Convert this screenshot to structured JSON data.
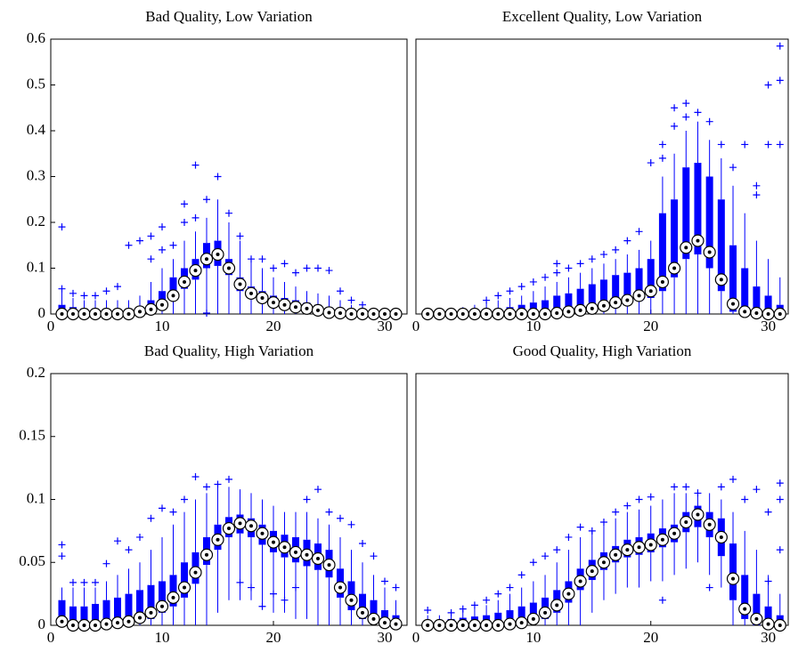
{
  "chart_data": [
    {
      "type": "box",
      "title": "Bad Quality, Low Variation",
      "color": "#0000ff",
      "x": [
        1,
        2,
        3,
        4,
        5,
        6,
        7,
        8,
        9,
        10,
        11,
        12,
        13,
        14,
        15,
        16,
        17,
        18,
        19,
        20,
        21,
        22,
        23,
        24,
        25,
        26,
        27,
        28,
        29,
        30,
        31
      ],
      "median": [
        0,
        0,
        0,
        0,
        0,
        0,
        0,
        0.005,
        0.01,
        0.02,
        0.04,
        0.07,
        0.095,
        0.12,
        0.13,
        0.1,
        0.065,
        0.045,
        0.035,
        0.025,
        0.02,
        0.015,
        0.012,
        0.008,
        0.003,
        0.002,
        0,
        0,
        0,
        0,
        0
      ],
      "q1": [
        0,
        0,
        0,
        0,
        0,
        0,
        0,
        0,
        0.005,
        0.012,
        0.03,
        0.055,
        0.075,
        0.1,
        0.105,
        0.085,
        0.05,
        0.035,
        0.025,
        0.018,
        0.012,
        0.01,
        0.007,
        0.004,
        0.001,
        0,
        0,
        0,
        0,
        0,
        0
      ],
      "q3": [
        0.02,
        0.015,
        0.012,
        0.012,
        0.01,
        0.01,
        0.012,
        0.015,
        0.03,
        0.05,
        0.08,
        0.1,
        0.12,
        0.155,
        0.16,
        0.12,
        0.08,
        0.06,
        0.05,
        0.04,
        0.035,
        0.03,
        0.025,
        0.02,
        0.015,
        0.012,
        0.01,
        0.008,
        0.005,
        0.004,
        0.003
      ],
      "whislo": [
        0,
        0,
        0,
        0,
        0,
        0,
        0,
        0,
        0,
        0,
        0,
        0,
        0,
        0,
        0,
        0,
        0,
        0,
        0,
        0,
        0,
        0,
        0,
        0,
        0,
        0,
        0,
        0,
        0,
        0,
        0
      ],
      "whishi": [
        0.05,
        0.035,
        0.03,
        0.03,
        0.03,
        0.03,
        0.03,
        0.04,
        0.07,
        0.1,
        0.12,
        0.16,
        0.18,
        0.21,
        0.25,
        0.2,
        0.16,
        0.12,
        0.1,
        0.08,
        0.07,
        0.06,
        0.05,
        0.045,
        0.04,
        0.03,
        0.02,
        0.015,
        0.01,
        0.008,
        0.006
      ],
      "outliers": [
        [
          0.19,
          0.055
        ],
        [
          0.045
        ],
        [
          0.04
        ],
        [
          0.04
        ],
        [
          0.05
        ],
        [
          0.06
        ],
        [
          0.15
        ],
        [
          0.16
        ],
        [
          0.17,
          0.12
        ],
        [
          0.19,
          0.14
        ],
        [
          0.15
        ],
        [
          0.24,
          0.2
        ],
        [
          0.325,
          0.21
        ],
        [
          0.25,
          0.002
        ],
        [
          0.3
        ],
        [
          0.22
        ],
        [
          0.17
        ],
        [
          0.12
        ],
        [
          0.12
        ],
        [
          0.1
        ],
        [
          0.11
        ],
        [
          0.09
        ],
        [
          0.1
        ],
        [
          0.1
        ],
        [
          0.095
        ],
        [
          0.05
        ],
        [
          0.03
        ],
        [
          0.02
        ],
        [],
        [],
        []
      ],
      "xlim": [
        0,
        32
      ],
      "ylim": [
        0,
        0.6
      ],
      "xticks": [
        0,
        10,
        20,
        30
      ],
      "yticks": [
        0,
        0.1,
        0.2,
        0.3,
        0.4,
        0.5,
        0.6
      ]
    },
    {
      "type": "box",
      "title": "Excellent Quality, Low Variation",
      "color": "#0000ff",
      "x": [
        1,
        2,
        3,
        4,
        5,
        6,
        7,
        8,
        9,
        10,
        11,
        12,
        13,
        14,
        15,
        16,
        17,
        18,
        19,
        20,
        21,
        22,
        23,
        24,
        25,
        26,
        27,
        28,
        29,
        30,
        31
      ],
      "median": [
        0,
        0,
        0,
        0,
        0,
        0,
        0,
        0,
        0,
        0,
        0,
        0.002,
        0.005,
        0.008,
        0.012,
        0.018,
        0.025,
        0.03,
        0.04,
        0.05,
        0.07,
        0.1,
        0.145,
        0.16,
        0.135,
        0.075,
        0.022,
        0.005,
        0.002,
        0,
        0
      ],
      "q1": [
        0,
        0,
        0,
        0,
        0,
        0,
        0,
        0,
        0,
        0,
        0,
        0,
        0.002,
        0.004,
        0.006,
        0.01,
        0.015,
        0.02,
        0.028,
        0.035,
        0.05,
        0.08,
        0.12,
        0.13,
        0.1,
        0.05,
        0.005,
        0,
        0,
        0,
        0
      ],
      "q3": [
        0.005,
        0.005,
        0.005,
        0.006,
        0.008,
        0.01,
        0.012,
        0.015,
        0.02,
        0.025,
        0.03,
        0.04,
        0.045,
        0.055,
        0.065,
        0.075,
        0.085,
        0.09,
        0.1,
        0.12,
        0.22,
        0.25,
        0.32,
        0.33,
        0.3,
        0.25,
        0.15,
        0.1,
        0.06,
        0.04,
        0.02
      ],
      "whislo": [
        0,
        0,
        0,
        0,
        0,
        0,
        0,
        0,
        0,
        0,
        0,
        0,
        0,
        0,
        0,
        0,
        0,
        0,
        0,
        0,
        0,
        0,
        0,
        0,
        0,
        0,
        0,
        0,
        0,
        0,
        0
      ],
      "whishi": [
        0.01,
        0.01,
        0.012,
        0.015,
        0.02,
        0.025,
        0.03,
        0.035,
        0.04,
        0.05,
        0.06,
        0.07,
        0.08,
        0.09,
        0.1,
        0.11,
        0.12,
        0.13,
        0.14,
        0.16,
        0.3,
        0.35,
        0.4,
        0.42,
        0.38,
        0.34,
        0.28,
        0.22,
        0.16,
        0.12,
        0.08
      ],
      "outliers": [
        [],
        [],
        [],
        [],
        [],
        [
          0.03
        ],
        [
          0.04
        ],
        [
          0.05
        ],
        [
          0.06
        ],
        [
          0.07
        ],
        [
          0.08
        ],
        [
          0.09,
          0.11
        ],
        [
          0.1
        ],
        [
          0.11
        ],
        [
          0.12
        ],
        [
          0.13
        ],
        [
          0.14
        ],
        [
          0.16
        ],
        [
          0.18
        ],
        [
          0.33
        ],
        [
          0.34,
          0.37
        ],
        [
          0.41,
          0.45
        ],
        [
          0.46,
          0.43
        ],
        [
          0.44
        ],
        [
          0.42
        ],
        [
          0.37
        ],
        [
          0.32
        ],
        [
          0.37
        ],
        [
          0.26,
          0.28
        ],
        [
          0.37,
          0.5
        ],
        [
          0.585,
          0.51,
          0.37
        ]
      ],
      "xlim": [
        0,
        31.7
      ],
      "ylim": [
        0,
        0.6
      ],
      "xticks": [
        0,
        10,
        20,
        30
      ]
    },
    {
      "type": "box",
      "title": "Bad Quality, High Variation",
      "color": "#0000ff",
      "x": [
        1,
        2,
        3,
        4,
        5,
        6,
        7,
        8,
        9,
        10,
        11,
        12,
        13,
        14,
        15,
        16,
        17,
        18,
        19,
        20,
        21,
        22,
        23,
        24,
        25,
        26,
        27,
        28,
        29,
        30,
        31
      ],
      "median": [
        0.003,
        0,
        0,
        0,
        0.001,
        0.002,
        0.003,
        0.006,
        0.01,
        0.015,
        0.022,
        0.03,
        0.042,
        0.056,
        0.068,
        0.077,
        0.081,
        0.079,
        0.073,
        0.066,
        0.062,
        0.058,
        0.056,
        0.053,
        0.048,
        0.03,
        0.02,
        0.01,
        0.005,
        0.002,
        0.001
      ],
      "q1": [
        0,
        0,
        0,
        0,
        0,
        0,
        0,
        0.002,
        0.005,
        0.01,
        0.015,
        0.022,
        0.033,
        0.048,
        0.06,
        0.07,
        0.073,
        0.07,
        0.064,
        0.058,
        0.054,
        0.05,
        0.047,
        0.044,
        0.038,
        0.022,
        0.012,
        0.005,
        0.001,
        0,
        0
      ],
      "q3": [
        0.02,
        0.015,
        0.015,
        0.017,
        0.02,
        0.022,
        0.025,
        0.028,
        0.032,
        0.035,
        0.04,
        0.05,
        0.058,
        0.07,
        0.08,
        0.086,
        0.088,
        0.085,
        0.08,
        0.075,
        0.072,
        0.07,
        0.068,
        0.065,
        0.06,
        0.045,
        0.035,
        0.025,
        0.02,
        0.012,
        0.008
      ],
      "whislo": [
        0,
        0,
        0,
        0,
        0,
        0,
        0,
        0,
        0,
        0,
        0,
        0,
        0,
        0,
        0.01,
        0.02,
        0.02,
        0.02,
        0.015,
        0.01,
        0.01,
        0.005,
        0.005,
        0,
        0,
        0,
        0,
        0,
        0,
        0,
        0
      ],
      "whishi": [
        0.03,
        0.03,
        0.03,
        0.03,
        0.035,
        0.04,
        0.045,
        0.05,
        0.06,
        0.07,
        0.08,
        0.09,
        0.1,
        0.105,
        0.11,
        0.11,
        0.108,
        0.105,
        0.1,
        0.095,
        0.09,
        0.09,
        0.09,
        0.085,
        0.08,
        0.07,
        0.06,
        0.05,
        0.04,
        0.03,
        0.02
      ],
      "outliers": [
        [
          0.064,
          0.055
        ],
        [
          0.034
        ],
        [
          0.034
        ],
        [
          0.034
        ],
        [
          0.049
        ],
        [
          0.067
        ],
        [
          0.06
        ],
        [
          0.07
        ],
        [
          0.085
        ],
        [
          0.093
        ],
        [
          0.09
        ],
        [
          0.1
        ],
        [
          0.118
        ],
        [
          0.11
        ],
        [
          0.112
        ],
        [
          0.116
        ],
        [
          0.034
        ],
        [
          0.03
        ],
        [
          0.015
        ],
        [
          0.025
        ],
        [
          0.02
        ],
        [
          0.03
        ],
        [
          0.1
        ],
        [
          0.108
        ],
        [
          0.09
        ],
        [
          0.085
        ],
        [
          0.08
        ],
        [
          0.065
        ],
        [
          0.055
        ],
        [
          0.035
        ],
        [
          0.03
        ]
      ],
      "xlim": [
        0,
        32
      ],
      "ylim": [
        0,
        0.2
      ],
      "xticks": [
        0,
        10,
        20,
        30
      ],
      "yticks": [
        0,
        0.05,
        0.1,
        0.15,
        0.2
      ]
    },
    {
      "type": "box",
      "title": "Good Quality, High Variation",
      "color": "#0000ff",
      "x": [
        1,
        2,
        3,
        4,
        5,
        6,
        7,
        8,
        9,
        10,
        11,
        12,
        13,
        14,
        15,
        16,
        17,
        18,
        19,
        20,
        21,
        22,
        23,
        24,
        25,
        26,
        27,
        28,
        29,
        30,
        31
      ],
      "median": [
        0,
        0,
        0,
        0,
        0,
        0,
        0,
        0.001,
        0.002,
        0.005,
        0.01,
        0.016,
        0.025,
        0.035,
        0.043,
        0.05,
        0.056,
        0.06,
        0.062,
        0.064,
        0.068,
        0.073,
        0.082,
        0.088,
        0.08,
        0.07,
        0.037,
        0.013,
        0.005,
        0.001,
        0
      ],
      "q1": [
        0,
        0,
        0,
        0,
        0,
        0,
        0,
        0,
        0,
        0.002,
        0.005,
        0.01,
        0.018,
        0.028,
        0.036,
        0.044,
        0.05,
        0.054,
        0.056,
        0.058,
        0.062,
        0.066,
        0.074,
        0.078,
        0.07,
        0.055,
        0.02,
        0.005,
        0,
        0,
        0
      ],
      "q3": [
        0.003,
        0.004,
        0.005,
        0.006,
        0.007,
        0.008,
        0.01,
        0.012,
        0.015,
        0.018,
        0.022,
        0.028,
        0.035,
        0.045,
        0.052,
        0.058,
        0.063,
        0.068,
        0.07,
        0.073,
        0.077,
        0.08,
        0.09,
        0.095,
        0.09,
        0.085,
        0.065,
        0.04,
        0.025,
        0.015,
        0.008
      ],
      "whislo": [
        0,
        0,
        0,
        0,
        0,
        0,
        0,
        0,
        0,
        0,
        0,
        0,
        0,
        0,
        0.01,
        0.02,
        0.025,
        0.03,
        0.03,
        0.035,
        0.035,
        0.04,
        0.045,
        0.05,
        0.04,
        0.03,
        0,
        0,
        0,
        0,
        0
      ],
      "whishi": [
        0.008,
        0.008,
        0.01,
        0.012,
        0.014,
        0.016,
        0.02,
        0.025,
        0.03,
        0.035,
        0.04,
        0.05,
        0.06,
        0.07,
        0.075,
        0.08,
        0.085,
        0.09,
        0.092,
        0.095,
        0.1,
        0.105,
        0.105,
        0.108,
        0.105,
        0.1,
        0.09,
        0.075,
        0.06,
        0.04,
        0.025
      ],
      "outliers": [
        [
          0.012
        ],
        [],
        [
          0.01
        ],
        [
          0.013
        ],
        [
          0.016
        ],
        [
          0.02
        ],
        [
          0.025
        ],
        [
          0.03
        ],
        [
          0.04
        ],
        [
          0.05
        ],
        [
          0.055
        ],
        [
          0.06
        ],
        [
          0.07
        ],
        [
          0.078
        ],
        [
          0.075
        ],
        [
          0.082
        ],
        [
          0.09
        ],
        [
          0.095
        ],
        [
          0.1
        ],
        [
          0.102
        ],
        [
          0.02
        ],
        [
          0.11
        ],
        [
          0.11
        ],
        [
          0.105
        ],
        [
          0.03
        ],
        [
          0.11
        ],
        [
          0.116
        ],
        [
          0.1
        ],
        [
          0.108
        ],
        [
          0.09,
          0.035
        ],
        [
          0.113,
          0.1,
          0.06
        ]
      ],
      "xlim": [
        0,
        31.7
      ],
      "ylim": [
        0,
        0.2
      ],
      "xticks": [
        0,
        10,
        20,
        30
      ]
    }
  ]
}
